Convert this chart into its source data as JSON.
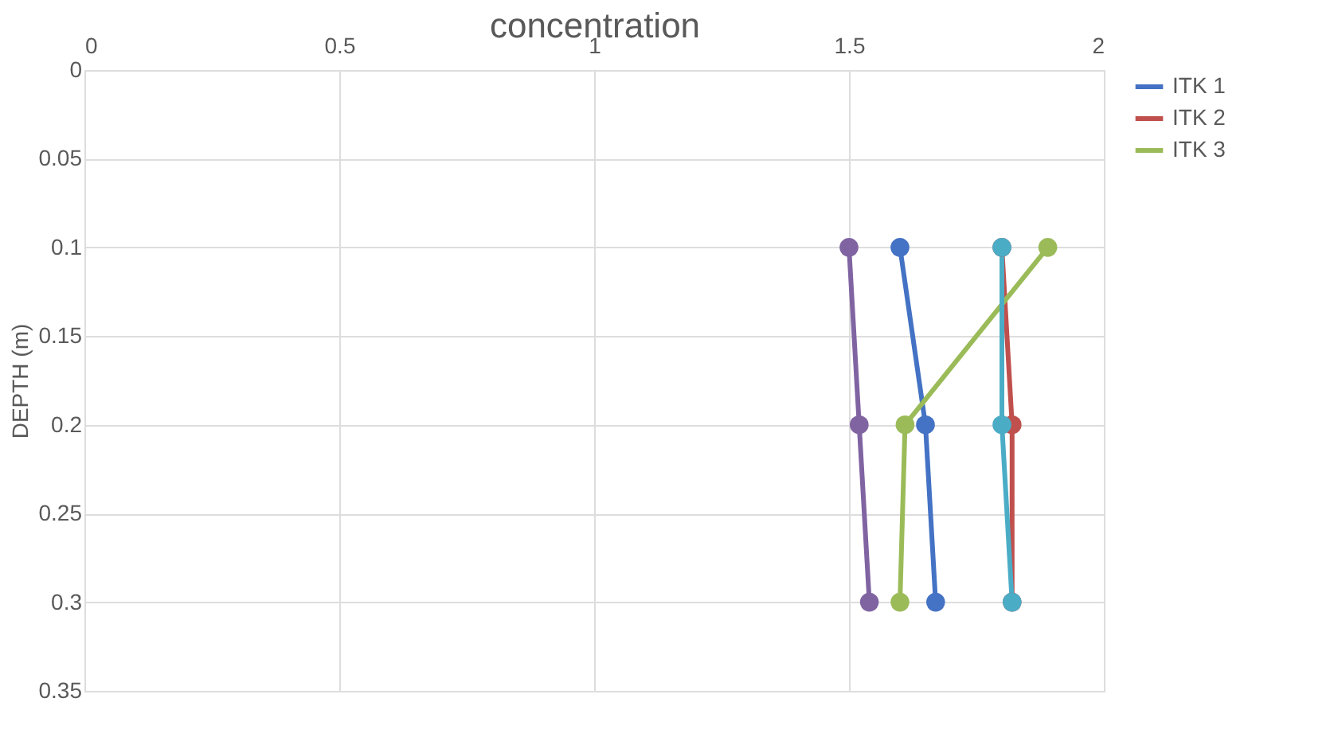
{
  "chart_data": {
    "type": "line",
    "xlabel": "concentration",
    "ylabel": "DEPTH (m)",
    "series": [
      {
        "name": "ITK 1",
        "color": "#4472c4",
        "x": [
          1.6,
          1.65,
          1.67
        ],
        "values": [
          0.1,
          0.2,
          0.3
        ]
      },
      {
        "name": "ITK 2",
        "color": "#c0504d",
        "x": [
          1.8,
          1.82,
          1.82
        ],
        "values": [
          0.1,
          0.2,
          0.3
        ]
      },
      {
        "name": "ITK 3",
        "color": "#9bbb59",
        "x": [
          1.89,
          1.61,
          1.6
        ],
        "values": [
          0.1,
          0.2,
          0.3
        ]
      },
      {
        "color": "#8064a2",
        "x": [
          1.5,
          1.52,
          1.54
        ],
        "values": [
          0.1,
          0.2,
          0.3
        ]
      },
      {
        "color": "#4bacc6",
        "x": [
          1.8,
          1.8,
          1.82
        ],
        "values": [
          0.1,
          0.2,
          0.3
        ]
      }
    ],
    "xlim": [
      0,
      2
    ],
    "xticks": [
      0,
      0.5,
      1,
      1.5,
      2
    ],
    "ylim": [
      0.35,
      0
    ],
    "yticks": [
      0,
      0.05,
      0.1,
      0.15,
      0.2,
      0.25,
      0.3,
      0.35
    ],
    "grid": true,
    "legend": "right",
    "marker": "circle",
    "line_style": "solid"
  }
}
